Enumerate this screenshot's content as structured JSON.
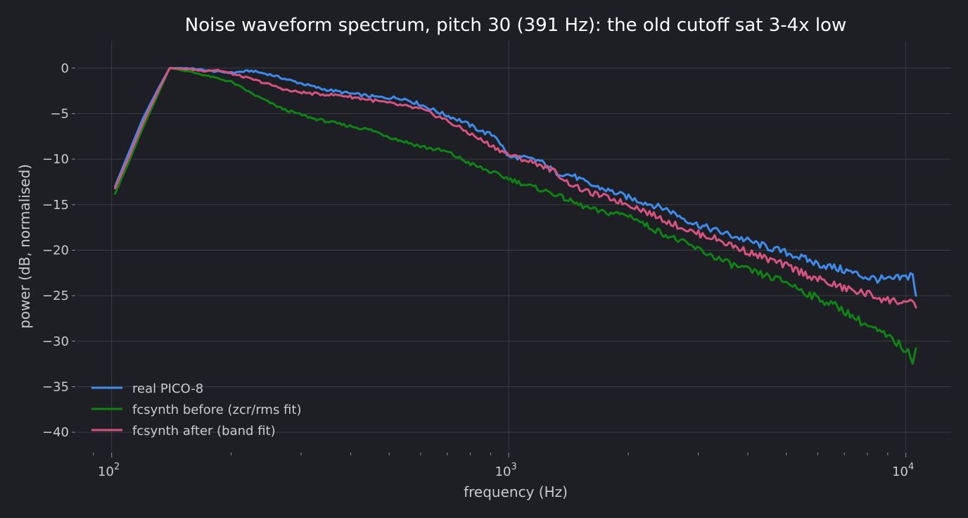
{
  "chart_data": {
    "type": "line",
    "title": "Noise waveform spectrum, pitch 30 (391 Hz): the old cutoff sat 3-4x low",
    "xlabel": "frequency (Hz)",
    "ylabel": "power (dB, normalised)",
    "xscale": "log",
    "xlim": [
      82,
      13000
    ],
    "ylim": [
      -42,
      3
    ],
    "grid": true,
    "legend_position": "bottom-left",
    "x_ticks": [
      {
        "value": 100,
        "base": "10",
        "exp": "2"
      },
      {
        "value": 1000,
        "base": "10",
        "exp": "3"
      },
      {
        "value": 10000,
        "base": "10",
        "exp": "4"
      }
    ],
    "y_ticks": [
      {
        "value": 0,
        "label": "0"
      },
      {
        "value": -5,
        "label": "−5"
      },
      {
        "value": -10,
        "label": "−10"
      },
      {
        "value": -15,
        "label": "−15"
      },
      {
        "value": -20,
        "label": "−20"
      },
      {
        "value": -25,
        "label": "−25"
      },
      {
        "value": -30,
        "label": "−30"
      },
      {
        "value": -35,
        "label": "−35"
      },
      {
        "value": -40,
        "label": "−40"
      }
    ],
    "series": [
      {
        "name": "real PICO-8",
        "color": "#3d8bea",
        "points": [
          [
            102,
            -13
          ],
          [
            110,
            -9.5
          ],
          [
            120,
            -5.5
          ],
          [
            132,
            -2
          ],
          [
            140,
            0
          ],
          [
            155,
            0
          ],
          [
            170,
            -0.2
          ],
          [
            185,
            -0.4
          ],
          [
            200,
            -0.5
          ],
          [
            225,
            -0.3
          ],
          [
            250,
            -0.7
          ],
          [
            290,
            -1.5
          ],
          [
            340,
            -2.3
          ],
          [
            400,
            -2.8
          ],
          [
            470,
            -3.2
          ],
          [
            540,
            -3.3
          ],
          [
            600,
            -4.0
          ],
          [
            680,
            -5.0
          ],
          [
            760,
            -5.8
          ],
          [
            860,
            -7.0
          ],
          [
            930,
            -7.5
          ],
          [
            1000,
            -9.8
          ],
          [
            1080,
            -9.8
          ],
          [
            1200,
            -10.2
          ],
          [
            1320,
            -11.5
          ],
          [
            1450,
            -11.8
          ],
          [
            1600,
            -12.8
          ],
          [
            1800,
            -13.5
          ],
          [
            2100,
            -14.5
          ],
          [
            2500,
            -15.5
          ],
          [
            2900,
            -17.0
          ],
          [
            3300,
            -17.8
          ],
          [
            3900,
            -18.8
          ],
          [
            4500,
            -19.7
          ],
          [
            5200,
            -20.5
          ],
          [
            6000,
            -21.5
          ],
          [
            7000,
            -22.2
          ],
          [
            8000,
            -23.0
          ],
          [
            9000,
            -23.3
          ],
          [
            10000,
            -23.0
          ],
          [
            10400,
            -22.5
          ],
          [
            10600,
            -25.0
          ]
        ]
      },
      {
        "name": "fcsynth before (zcr/rms fit)",
        "color": "#0d8413",
        "points": [
          [
            102,
            -13.8
          ],
          [
            110,
            -10.5
          ],
          [
            120,
            -6.5
          ],
          [
            132,
            -2.5
          ],
          [
            140,
            0
          ],
          [
            150,
            -0.2
          ],
          [
            165,
            -0.6
          ],
          [
            180,
            -1.0
          ],
          [
            200,
            -1.5
          ],
          [
            230,
            -3.0
          ],
          [
            270,
            -4.5
          ],
          [
            320,
            -5.5
          ],
          [
            380,
            -6.2
          ],
          [
            450,
            -6.8
          ],
          [
            520,
            -7.8
          ],
          [
            600,
            -8.6
          ],
          [
            700,
            -9.2
          ],
          [
            800,
            -10.5
          ],
          [
            950,
            -11.8
          ],
          [
            1100,
            -12.8
          ],
          [
            1300,
            -13.8
          ],
          [
            1500,
            -15.0
          ],
          [
            1700,
            -15.8
          ],
          [
            1900,
            -16.0
          ],
          [
            2050,
            -16.3
          ],
          [
            2200,
            -17.2
          ],
          [
            2400,
            -18.0
          ],
          [
            2700,
            -19.0
          ],
          [
            3100,
            -20.2
          ],
          [
            3600,
            -21.5
          ],
          [
            4200,
            -22.5
          ],
          [
            5000,
            -23.5
          ],
          [
            5800,
            -25.0
          ],
          [
            6800,
            -26.3
          ],
          [
            7800,
            -28.0
          ],
          [
            8800,
            -29.3
          ],
          [
            9600,
            -30.3
          ],
          [
            10000,
            -31.0
          ],
          [
            10400,
            -32.0
          ],
          [
            10600,
            -30.8
          ]
        ]
      },
      {
        "name": "fcsynth after (band fit)",
        "color": "#d6527f",
        "points": [
          [
            102,
            -13.2
          ],
          [
            110,
            -10
          ],
          [
            120,
            -6
          ],
          [
            132,
            -2.2
          ],
          [
            140,
            0
          ],
          [
            155,
            -0.1
          ],
          [
            170,
            -0.3
          ],
          [
            185,
            -0.2
          ],
          [
            200,
            -0.6
          ],
          [
            225,
            -1.2
          ],
          [
            250,
            -1.8
          ],
          [
            280,
            -2.5
          ],
          [
            320,
            -2.8
          ],
          [
            380,
            -3.0
          ],
          [
            450,
            -3.5
          ],
          [
            520,
            -4.0
          ],
          [
            600,
            -4.5
          ],
          [
            680,
            -5.5
          ],
          [
            770,
            -6.8
          ],
          [
            860,
            -8.0
          ],
          [
            950,
            -9.0
          ],
          [
            1000,
            -9.5
          ],
          [
            1080,
            -10.0
          ],
          [
            1180,
            -10.5
          ],
          [
            1300,
            -11.3
          ],
          [
            1400,
            -12.5
          ],
          [
            1550,
            -13.5
          ],
          [
            1800,
            -14.3
          ],
          [
            2100,
            -15.3
          ],
          [
            2500,
            -16.8
          ],
          [
            2900,
            -18.0
          ],
          [
            3300,
            -18.7
          ],
          [
            3900,
            -20.0
          ],
          [
            4500,
            -21.0
          ],
          [
            5200,
            -22.0
          ],
          [
            6000,
            -23.2
          ],
          [
            7000,
            -24.2
          ],
          [
            8000,
            -24.8
          ],
          [
            9000,
            -25.5
          ],
          [
            10000,
            -25.7
          ],
          [
            10400,
            -26.0
          ],
          [
            10600,
            -26.3
          ]
        ]
      }
    ]
  }
}
